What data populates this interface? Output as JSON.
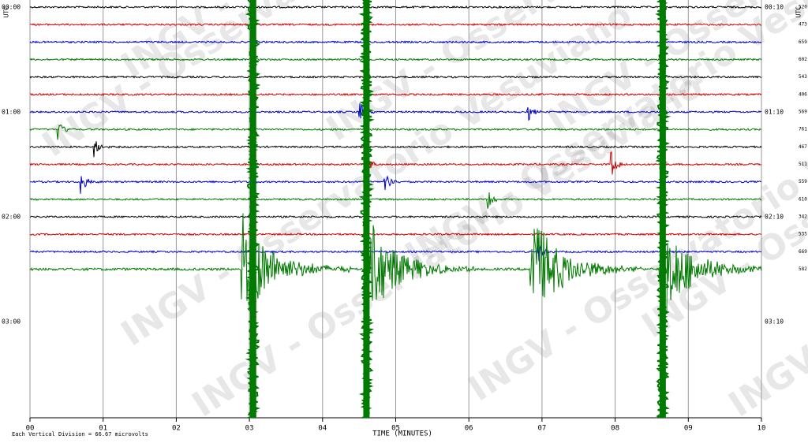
{
  "chart_data": {
    "type": "helicorder",
    "watermark": "INGV - Osservatorio Vesuviano",
    "left_axis_label": "UTC",
    "right_axis_label": "UTC",
    "x_label": "TIME (MINUTES)",
    "footnote": "Each Vertical Division = 66.67 microvolts",
    "xlim": [
      0,
      10
    ],
    "xticks": [
      {
        "value": 0,
        "label": "00"
      },
      {
        "value": 1,
        "label": "01"
      },
      {
        "value": 2,
        "label": "02"
      },
      {
        "value": 3,
        "label": "03"
      },
      {
        "value": 4,
        "label": "04"
      },
      {
        "value": 5,
        "label": "05"
      },
      {
        "value": 6,
        "label": "06"
      },
      {
        "value": 7,
        "label": "07"
      },
      {
        "value": 8,
        "label": "08"
      },
      {
        "value": 9,
        "label": "09"
      },
      {
        "value": 10,
        "label": "10"
      }
    ],
    "grid": true,
    "left_labels": [
      "00:00",
      "01:00",
      "02:00",
      "03:00"
    ],
    "right_labels": [
      "00:10",
      "01:10",
      "02:10",
      "03:10"
    ],
    "rows": [
      {
        "label": "520",
        "color": "#000000"
      },
      {
        "label": "473",
        "color": "#d00000"
      },
      {
        "label": "659",
        "color": "#0000c8"
      },
      {
        "label": "602",
        "color": "#007a00"
      },
      {
        "label": "543",
        "color": "#000000"
      },
      {
        "label": "406",
        "color": "#d00000"
      },
      {
        "label": "569",
        "color": "#0000c8"
      },
      {
        "label": "761",
        "color": "#007a00"
      },
      {
        "label": "467",
        "color": "#000000"
      },
      {
        "label": "511",
        "color": "#d00000"
      },
      {
        "label": "559",
        "color": "#0000c8"
      },
      {
        "label": "610",
        "color": "#007a00"
      },
      {
        "label": "342",
        "color": "#000000"
      },
      {
        "label": "535",
        "color": "#d00000"
      },
      {
        "label": "669",
        "color": "#0000c8"
      },
      {
        "label": "582",
        "color": "#007a00"
      }
    ],
    "events": [
      {
        "row": 6,
        "x": 4.5
      },
      {
        "row": 6,
        "x": 6.8
      },
      {
        "row": 7,
        "x": 0.38
      },
      {
        "row": 8,
        "x": 0.88
      },
      {
        "row": 9,
        "x": 4.6
      },
      {
        "row": 9,
        "x": 7.95
      },
      {
        "row": 10,
        "x": 0.7
      },
      {
        "row": 10,
        "x": 4.85
      },
      {
        "row": 11,
        "x": 6.25
      },
      {
        "row": 14,
        "x": 6.95
      },
      {
        "row": 15,
        "x": 2.9
      },
      {
        "row": 15,
        "x": 4.6
      },
      {
        "row": 15,
        "x": 6.85
      },
      {
        "row": 15,
        "x": 8.6
      }
    ],
    "saturated_x": [
      3.05,
      4.6,
      8.65
    ]
  }
}
